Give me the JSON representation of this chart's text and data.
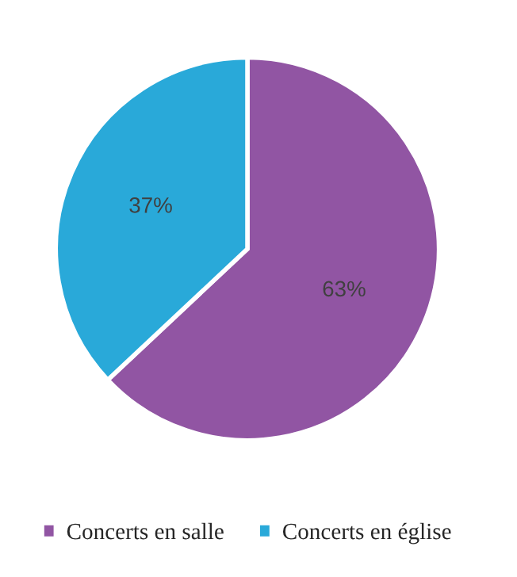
{
  "chart_data": {
    "type": "pie",
    "categories": [
      "Concerts en salle",
      "Concerts en église"
    ],
    "values": [
      63,
      37
    ],
    "value_labels": [
      "63%",
      "37%"
    ],
    "colors": [
      "#9155a3",
      "#29a9d9"
    ],
    "legend": "bottom"
  }
}
